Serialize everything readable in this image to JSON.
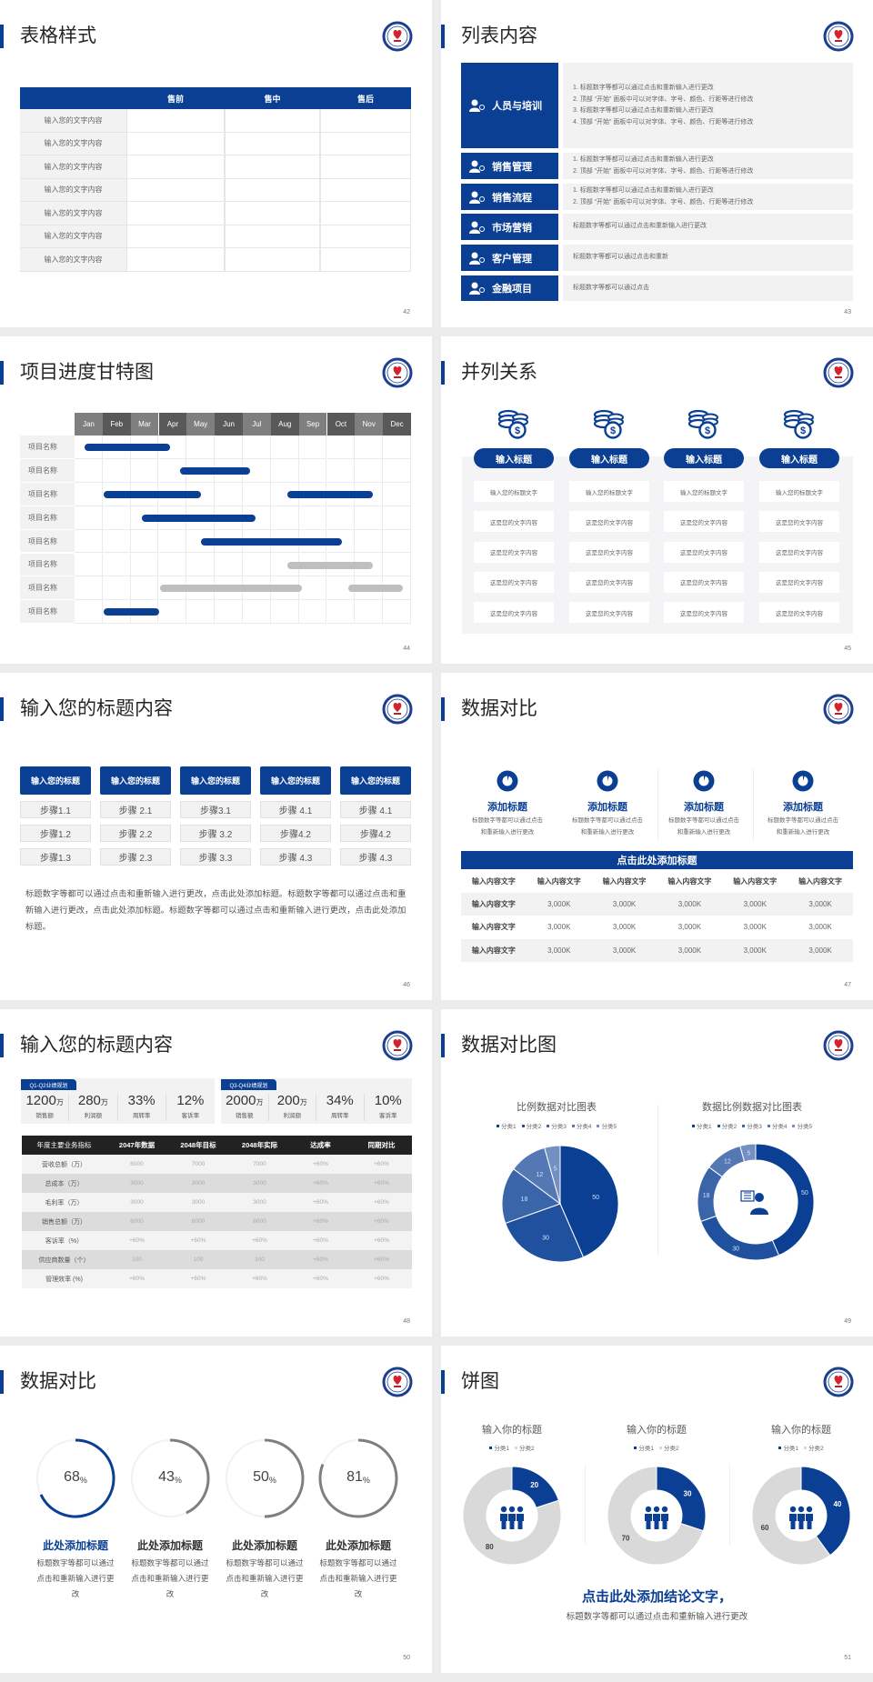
{
  "colors": {
    "brand": "#0a3f94",
    "gray": "#7f7f7f",
    "light": "#f2f2f2"
  },
  "slides": [
    {
      "title": "表格样式",
      "page": "42",
      "table": {
        "headers": [
          "",
          "售前",
          "售中",
          "售后"
        ],
        "rows": [
          "输入您的文字内容",
          "输入您的文字内容",
          "输入您的文字内容",
          "输入您的文字内容",
          "输入您的文字内容",
          "输入您的文字内容",
          "输入您的文字内容"
        ]
      }
    },
    {
      "title": "列表内容",
      "page": "43",
      "items": [
        {
          "icon": "people-training-icon",
          "label": "人员与培训",
          "lines": [
            "1.   标题数字等都可以通过点击和重新输入进行更改",
            "2.   顶部 “开始” 面板中可以对字体、字号、颜色、行距等进行修改",
            "3.   标题数字等都可以通过点击和重新输入进行更改",
            "4.   顶部 “开始” 面板中可以对字体、字号、颜色、行距等进行修改"
          ]
        },
        {
          "icon": "sales-manager-icon",
          "label": "销售管理",
          "lines": [
            "1.   标题数字等都可以通过点击和重新输入进行更改",
            "2.   顶部 “开始” 面板中可以对字体、字号、颜色、行距等进行修改"
          ]
        },
        {
          "icon": "process-cycle-icon",
          "label": "销售流程",
          "lines": [
            "1.   标题数字等都可以通过点击和重新输入进行更改",
            "2.   顶部 “开始” 面板中可以对字体、字号、颜色、行距等进行修改"
          ]
        },
        {
          "icon": "bar-chart-icon",
          "label": "市场营销",
          "lines": [
            "标题数字等都可以通过点击和重新输入进行更改"
          ]
        },
        {
          "icon": "customers-icon",
          "label": "客户管理",
          "lines": [
            "标题数字等都可以通过点击和重新"
          ]
        },
        {
          "icon": "finance-hand-icon",
          "label": "金融项目",
          "lines": [
            "标题数字等都可以通过点击"
          ]
        }
      ]
    },
    {
      "title": "项目进度甘特图",
      "page": "44",
      "months": [
        "Jan",
        "Feb",
        "Mar",
        "Apr",
        "May",
        "Jun",
        "Jul",
        "Aug",
        "Sep",
        "Oct",
        "Nov",
        "Dec"
      ],
      "bar_colors": {
        "active": "#0a3f94",
        "inactive": "#bfbfbf"
      },
      "tasks": [
        {
          "label": "项目名称",
          "bars": [
            {
              "start": 0.35,
              "end": 3.4,
              "status": "active"
            }
          ]
        },
        {
          "label": "项目名称",
          "bars": [
            {
              "start": 3.75,
              "end": 6.25,
              "status": "active"
            }
          ]
        },
        {
          "label": "项目名称",
          "bars": [
            {
              "start": 1.05,
              "end": 4.5,
              "status": "active"
            },
            {
              "start": 7.6,
              "end": 10.65,
              "status": "active"
            }
          ]
        },
        {
          "label": "项目名称",
          "bars": [
            {
              "start": 2.4,
              "end": 6.45,
              "status": "active"
            }
          ]
        },
        {
          "label": "项目名称",
          "bars": [
            {
              "start": 4.5,
              "end": 9.55,
              "status": "active"
            }
          ]
        },
        {
          "label": "项目名称",
          "bars": [
            {
              "start": 7.6,
              "end": 10.65,
              "status": "inactive"
            }
          ]
        },
        {
          "label": "项目名称",
          "bars": [
            {
              "start": 3.05,
              "end": 8.1,
              "status": "inactive"
            },
            {
              "start": 9.75,
              "end": 11.7,
              "status": "inactive"
            }
          ]
        },
        {
          "label": "项目名称",
          "bars": [
            {
              "start": 1.05,
              "end": 3.0,
              "status": "active"
            }
          ]
        }
      ]
    },
    {
      "title": "并列关系",
      "page": "45",
      "columns": [
        {
          "icon": "coins-dollar-icon",
          "heading": "输入标题",
          "cells": [
            "输入您的标题文字",
            "这是您的文字内容",
            "这是您的文字内容",
            "这是您的文字内容",
            "这是您的文字内容"
          ]
        },
        {
          "icon": "coins-dollar-icon",
          "heading": "输入标题",
          "cells": [
            "输入您的标题文字",
            "这是您的文字内容",
            "这是您的文字内容",
            "这是您的文字内容",
            "这是您的文字内容"
          ]
        },
        {
          "icon": "coins-dollar-icon",
          "heading": "输入标题",
          "cells": [
            "输入您的标题文字",
            "这是您的文字内容",
            "这是您的文字内容",
            "这是您的文字内容",
            "这是您的文字内容"
          ]
        },
        {
          "icon": "coins-dollar-icon",
          "heading": "输入标题",
          "cells": [
            "输入您的标题文字",
            "这是您的文字内容",
            "这是您的文字内容",
            "这是您的文字内容",
            "这是您的文字内容"
          ]
        }
      ]
    },
    {
      "title": "输入您的标题内容",
      "page": "46",
      "columns": [
        {
          "heading": "输入您的标题",
          "steps": [
            "步骤1.1",
            "步骤1.2",
            "步骤1.3"
          ]
        },
        {
          "heading": "输入您的标题",
          "steps": [
            "步骤 2.1",
            "步骤 2.2",
            "步骤 2.3"
          ]
        },
        {
          "heading": "输入您的标题",
          "steps": [
            "步骤3.1",
            "步骤 3.2",
            "步骤 3.3"
          ]
        },
        {
          "heading": "输入您的标题",
          "steps": [
            "步骤 4.1",
            "步骤4.2",
            "步骤 4.3"
          ]
        },
        {
          "heading": "输入您的标题",
          "steps": [
            "步骤 4.1",
            "步骤4.2",
            "步骤 4.3"
          ]
        }
      ],
      "paragraph": "标题数字等都可以通过点击和重新输入进行更改，点击此处添加标题。标题数字等都可以通过点击和重新输入进行更改，点击此处添加标题。标题数字等都可以通过点击和重新输入进行更改，点击此处添加标题。"
    },
    {
      "title": "数据对比",
      "page": "47",
      "cards": [
        {
          "icon": "pie-chart-icon",
          "heading": "添加标题",
          "desc": "标题数字等都可以通过点击和重新输入进行更改"
        },
        {
          "icon": "pie-chart-icon",
          "heading": "添加标题",
          "desc": "标题数字等都可以通过点击和重新输入进行更改"
        },
        {
          "icon": "pie-chart-icon",
          "heading": "添加标题",
          "desc": "标题数字等都可以通过点击和重新输入进行更改"
        },
        {
          "icon": "pie-chart-icon",
          "heading": "添加标题",
          "desc": "标题数字等都可以通过点击和重新输入进行更改"
        }
      ],
      "table": {
        "caption": "点击此处添加标题",
        "headers": [
          "输入内容文字",
          "输入内容文字",
          "输入内容文字",
          "输入内容文字",
          "输入内容文字",
          "输入内容文字"
        ],
        "rows": [
          [
            "输入内容文字",
            "3,000K",
            "3,000K",
            "3,000K",
            "3,000K",
            "3,000K"
          ],
          [
            "输入内容文字",
            "3,000K",
            "3,000K",
            "3,000K",
            "3,000K",
            "3,000K"
          ],
          [
            "输入内容文字",
            "3,000K",
            "3,000K",
            "3,000K",
            "3,000K",
            "3,000K"
          ]
        ]
      }
    },
    {
      "title": "输入您的标题内容",
      "page": "48",
      "panels": [
        {
          "tag": "Q1-Q2业绩规划",
          "kpis": [
            {
              "value": "1200",
              "unit": "万",
              "label": "销售额"
            },
            {
              "value": "280",
              "unit": "万",
              "label": "利润额"
            },
            {
              "value": "33%",
              "unit": "",
              "label": "周转率"
            },
            {
              "value": "12%",
              "unit": "",
              "label": "客诉率"
            }
          ]
        },
        {
          "tag": "Q3-Q4业绩规划",
          "kpis": [
            {
              "value": "2000",
              "unit": "万",
              "label": "销售额"
            },
            {
              "value": "200",
              "unit": "万",
              "label": "利润额"
            },
            {
              "value": "34%",
              "unit": "",
              "label": "周转率"
            },
            {
              "value": "10%",
              "unit": "",
              "label": "客诉率"
            }
          ]
        }
      ],
      "table": {
        "headers": [
          "年度主要业务指标",
          "2047年数据",
          "2048年目标",
          "2048年实际",
          "达成率",
          "同期对比"
        ],
        "rows": [
          [
            "营收总额（万）",
            "6000",
            "7000",
            "7000",
            "+60%",
            "+60%"
          ],
          [
            "总成本（万）",
            "3000",
            "3000",
            "3000",
            "+60%",
            "+60%"
          ],
          [
            "毛利率（万）",
            "3000",
            "3000",
            "3000",
            "+60%",
            "+60%"
          ],
          [
            "销售总额（万）",
            "6000",
            "6000",
            "6000",
            "+60%",
            "+60%"
          ],
          [
            "客诉率（%）",
            "+60%",
            "+60%",
            "+60%",
            "+60%",
            "+60%"
          ],
          [
            "供应商数量（个）",
            "100",
            "100",
            "100",
            "+60%",
            "+60%"
          ],
          [
            "管理效率 (%)",
            "+60%",
            "+60%",
            "+60%",
            "+60%",
            "+60%"
          ]
        ]
      }
    },
    {
      "title": "数据对比图",
      "page": "49"
    },
    {
      "title": "数据对比",
      "page": "50",
      "gauges": [
        {
          "percent": 68,
          "unit": "%",
          "heading": "此处添加标题",
          "desc": "标题数字等都可以通过点击和重新输入进行更改",
          "highlight": true
        },
        {
          "percent": 43,
          "unit": "%",
          "heading": "此处添加标题",
          "desc": "标题数字等都可以通过点击和重新输入进行更改",
          "highlight": false
        },
        {
          "percent": 50,
          "unit": "%",
          "heading": "此处添加标题",
          "desc": "标题数字等都可以通过点击和重新输入进行更改",
          "highlight": false
        },
        {
          "percent": 81,
          "unit": "%",
          "heading": "此处添加标题",
          "desc": "标题数字等都可以通过点击和重新输入进行更改",
          "highlight": false
        }
      ]
    },
    {
      "title": "饼图",
      "page": "51",
      "conclusion": "点击此处添加结论文字，",
      "subtext": "标题数字等都可以通过点击和重新输入进行更改"
    }
  ],
  "chart_data": [
    {
      "type": "pie",
      "title": "比例数据对比图表",
      "legend_position": "top",
      "categories": [
        "分类1",
        "分类2",
        "分类3",
        "分类4",
        "分类5"
      ],
      "values": [
        50,
        30,
        18,
        12,
        5
      ],
      "colors": [
        "#0a3f94",
        "#20519e",
        "#3a65a9",
        "#5478b3",
        "#7490c2"
      ]
    },
    {
      "type": "pie",
      "variant": "donut",
      "title": "数据比例数据对比图表",
      "legend_position": "top",
      "center_icon": "customer-service-icon",
      "categories": [
        "分类1",
        "分类2",
        "分类3",
        "分类4",
        "分类5"
      ],
      "values": [
        50,
        30,
        18,
        12,
        5
      ],
      "colors": [
        "#0a3f94",
        "#20519e",
        "#3a65a9",
        "#5478b3",
        "#7490c2"
      ]
    },
    {
      "type": "pie",
      "variant": "donut",
      "title": "输入你的标题",
      "legend_position": "top",
      "center_icon": "team-icon",
      "categories": [
        "分类1",
        "分类2"
      ],
      "values": [
        20,
        80
      ],
      "colors": [
        "#0a3f94",
        "#d9d9d9"
      ]
    },
    {
      "type": "pie",
      "variant": "donut",
      "title": "输入你的标题",
      "legend_position": "top",
      "center_icon": "team-icon",
      "categories": [
        "分类1",
        "分类2"
      ],
      "values": [
        30,
        70
      ],
      "colors": [
        "#0a3f94",
        "#d9d9d9"
      ]
    },
    {
      "type": "pie",
      "variant": "donut",
      "title": "输入你的标题",
      "legend_position": "top",
      "center_icon": "team-icon",
      "categories": [
        "分类1",
        "分类2"
      ],
      "values": [
        40,
        60
      ],
      "colors": [
        "#0a3f94",
        "#d9d9d9"
      ]
    }
  ]
}
